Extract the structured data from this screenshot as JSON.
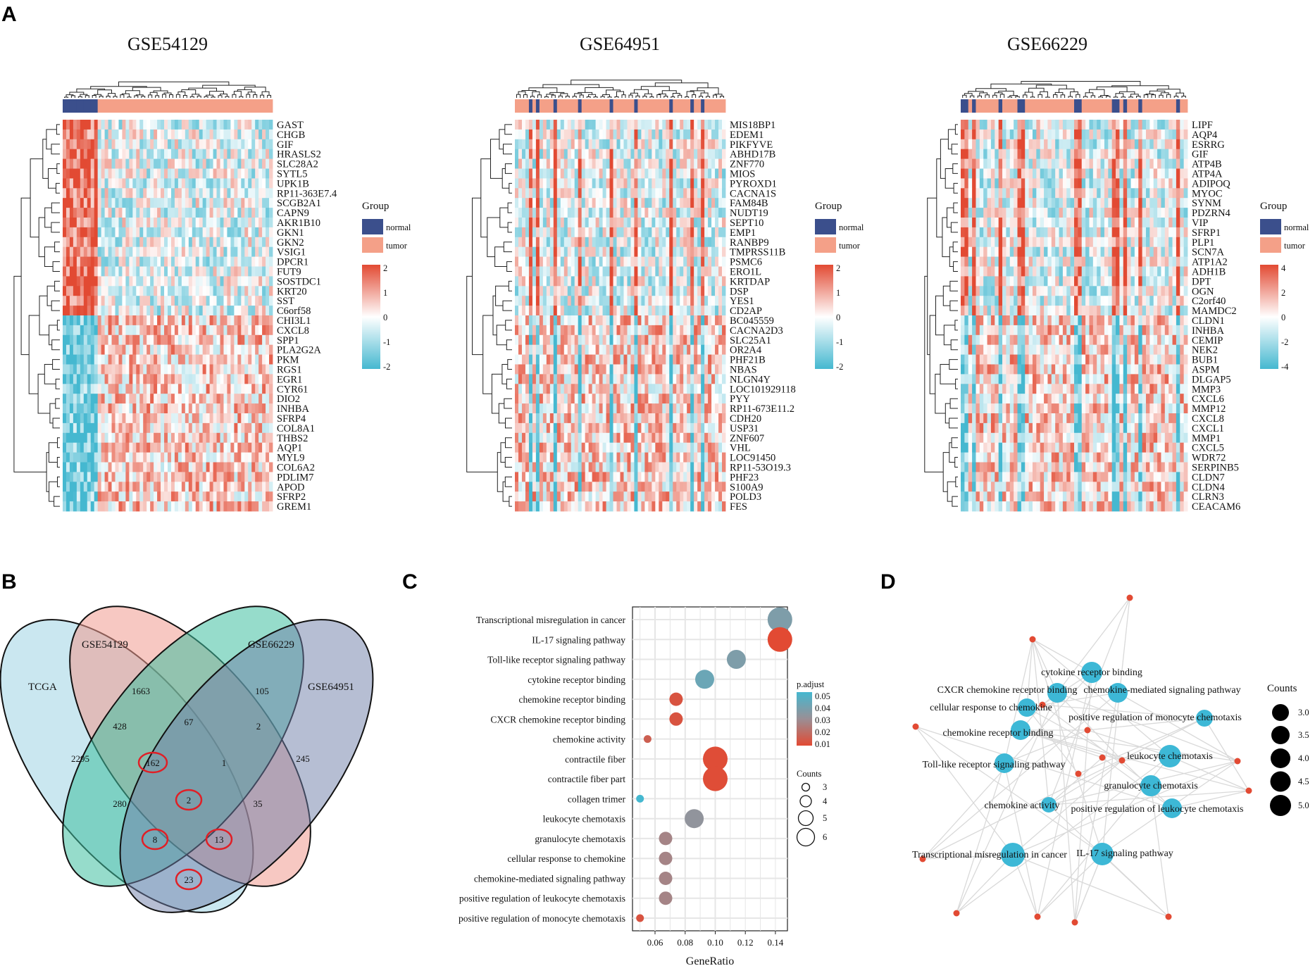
{
  "figure": {
    "panels": [
      "A",
      "B",
      "C",
      "D"
    ]
  },
  "colors": {
    "normal": "#3b4f8c",
    "tumor": "#f4a088",
    "high": "#e24a33",
    "low": "#45b8d0",
    "mid": "#ffffff",
    "dot_gray": "#9a8f95",
    "node": "#3db8d6",
    "edge": "#d9d9d9",
    "red_dot": "#e24a33"
  },
  "heatmaps": [
    {
      "title": "GSE54129",
      "genes": [
        "GAST",
        "CHGB",
        "GIF",
        "HRASLS2",
        "SLC28A2",
        "SYTL5",
        "UPK1B",
        "RP11-363E7.4",
        "SCGB2A1",
        "CAPN9",
        "AKR1B10",
        "GKN1",
        "GKN2",
        "VSIG1",
        "DPCR1",
        "FUT9",
        "SOSTDC1",
        "KRT20",
        "SST",
        "C6orf58",
        "CHI3L1",
        "CXCL8",
        "SPP1",
        "PLA2G2A",
        "PKM",
        "RGS1",
        "EGR1",
        "CYR61",
        "DIO2",
        "INHBA",
        "SFRP4",
        "COL8A1",
        "THBS2",
        "AQP1",
        "MYL9",
        "COL6A2",
        "PDLIM7",
        "APOD",
        "SFRP2",
        "GREM1"
      ],
      "n_up_first": 20,
      "normal_mode": "block",
      "legend": {
        "title": "Group",
        "groups": [
          "normal",
          "tumor"
        ],
        "scale": [
          "2",
          "1",
          "0",
          "-1",
          "-2"
        ]
      }
    },
    {
      "title": "GSE64951",
      "genes": [
        "MIS18BP1",
        "EDEM1",
        "PIKFYVE",
        "ABHD17B",
        "ZNF770",
        "MIOS",
        "PYROXD1",
        "CACNA1S",
        "FAM84B",
        "NUDT19",
        "SEPT10",
        "EMP1",
        "RANBP9",
        "TMPRSS11B",
        "PSMC6",
        "ERO1L",
        "KRTDAP",
        "DSP",
        "YES1",
        "CD2AP",
        "BC045559",
        "CACNA2D3",
        "SLC25A1",
        "OR2A4",
        "PHF21B",
        "NBAS",
        "NLGN4Y",
        "LOC101929118",
        "PYY",
        "RP11-673E11.2",
        "CDH20",
        "USP31",
        "ZNF607",
        "VHL",
        "LOC91450",
        "RP11-53O19.3",
        "PHF23",
        "S100A9",
        "POLD3",
        "FES"
      ],
      "n_up_first": 20,
      "normal_mode": "interspersed",
      "legend": {
        "title": "Group",
        "groups": [
          "normal",
          "tumor"
        ],
        "scale": [
          "2",
          "1",
          "0",
          "-1",
          "-2"
        ]
      }
    },
    {
      "title": "GSE66229",
      "genes": [
        "LIPF",
        "AQP4",
        "ESRRG",
        "GIF",
        "ATP4B",
        "ATP4A",
        "ADIPOQ",
        "MYOC",
        "SYNM",
        "PDZRN4",
        "VIP",
        "SFRP1",
        "PLP1",
        "SCN7A",
        "ATP1A2",
        "ADH1B",
        "DPT",
        "OGN",
        "C2orf40",
        "MAMDC2",
        "CLDN1",
        "INHBA",
        "CEMIP",
        "NEK2",
        "BUB1",
        "ASPM",
        "DLGAP5",
        "MMP3",
        "CXCL6",
        "MMP12",
        "CXCL8",
        "CXCL1",
        "MMP1",
        "CXCL5",
        "WDR72",
        "SERPINB5",
        "CLDN7",
        "CLDN4",
        "CLRN3",
        "CEACAM6"
      ],
      "n_up_first": 20,
      "normal_mode": "interspersed",
      "legend": {
        "title": "Group",
        "groups": [
          "normal",
          "tumor"
        ],
        "scale": [
          "4",
          "2",
          "0",
          "-2",
          "-4"
        ]
      }
    }
  ],
  "venn": {
    "sets": [
      "TCGA",
      "GSE54129",
      "GSE66229",
      "GSE64951"
    ],
    "counts": [
      "2295",
      "1663",
      "105",
      "245",
      "428",
      "67",
      "2",
      "162",
      "1",
      "280",
      "2",
      "35",
      "8",
      "13",
      "23"
    ],
    "circled": [
      "162",
      "2",
      "8",
      "13",
      "23"
    ]
  },
  "chart_data": {
    "type": "scatter",
    "title": "",
    "xlabel": "GeneRatio",
    "ylabel": "",
    "xlim": [
      0.045,
      0.148
    ],
    "xticks": [
      "0.06",
      "0.08",
      "0.10",
      "0.12",
      "0.14"
    ],
    "xtick_values": [
      0.06,
      0.08,
      0.1,
      0.12,
      0.14
    ],
    "terms": [
      "Transcriptional misregulation in cancer",
      "IL-17 signaling pathway",
      "Toll-like receptor signaling pathway",
      "cytokine receptor binding",
      "chemokine receptor binding",
      "CXCR chemokine receptor binding",
      "chemokine activity",
      "contractile fiber",
      "contractile fiber part",
      "collagen trimer",
      "leukocyte chemotaxis",
      "granulocyte chemotaxis",
      "cellular response to chemokine",
      "chemokine-mediated signaling pathway",
      "positive regulation of leukocyte chemotaxis",
      "positive regulation of monocyte chemotaxis"
    ],
    "gene_ratio": [
      0.143,
      0.143,
      0.114,
      0.093,
      0.074,
      0.074,
      0.055,
      0.1,
      0.1,
      0.05,
      0.086,
      0.067,
      0.067,
      0.067,
      0.067,
      0.05
    ],
    "counts": [
      6,
      6,
      5,
      5,
      4,
      4,
      3,
      6,
      6,
      3,
      5,
      4,
      4,
      4,
      4,
      3
    ],
    "p_adjust": [
      0.035,
      0.005,
      0.035,
      0.04,
      0.008,
      0.008,
      0.012,
      0.006,
      0.006,
      0.05,
      0.03,
      0.024,
      0.024,
      0.024,
      0.024,
      0.008
    ],
    "legend_padj": {
      "title": "p.adjust",
      "ticks": [
        "0.05",
        "0.04",
        "0.03",
        "0.02",
        "0.01"
      ]
    },
    "legend_counts": {
      "title": "Counts",
      "values": [
        "3",
        "4",
        "5",
        "6"
      ]
    }
  },
  "network": {
    "nodes": [
      "cytokine receptor binding",
      "CXCR chemokine receptor binding",
      "chemokine-mediated signaling pathway",
      "cellular response to chemokine",
      "positive regulation of monocyte chemotaxis",
      "chemokine receptor binding",
      "leukocyte chemotaxis",
      "Toll-like receptor signaling pathway",
      "granulocyte chemotaxis",
      "chemokine activity",
      "positive regulation of leukocyte chemotaxis",
      "Transcriptional misregulation in cancer",
      "IL-17 signaling pathway"
    ],
    "legend": {
      "title": "Counts",
      "values": [
        "3.0",
        "3.5",
        "4.0",
        "4.5",
        "5.0"
      ]
    }
  }
}
